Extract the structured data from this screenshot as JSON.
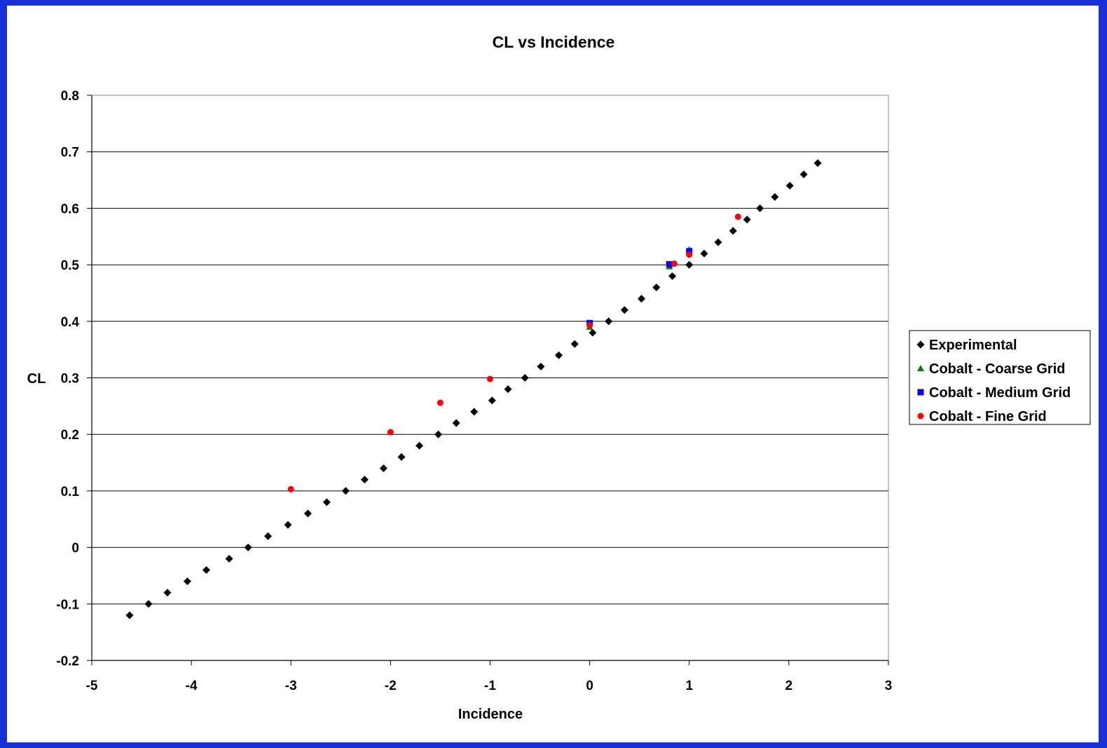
{
  "chart_data": {
    "type": "scatter",
    "title": "CL vs Incidence",
    "xlabel": "Incidence",
    "ylabel": "CL",
    "xlim": [
      -5,
      3
    ],
    "ylim": [
      -0.2,
      0.8
    ],
    "x_ticks": [
      -5,
      -4,
      -3,
      -2,
      -1,
      0,
      1,
      2,
      3
    ],
    "y_ticks": [
      -0.2,
      -0.1,
      0,
      0.1,
      0.2,
      0.3,
      0.4,
      0.5,
      0.6,
      0.7,
      0.8
    ],
    "x_tick_labels": [
      "-5",
      "-4",
      "-3",
      "-2",
      "-1",
      "0",
      "1",
      "2",
      "3"
    ],
    "y_tick_labels": [
      "-0.2",
      "-0.1",
      "0",
      "0.1",
      "0.2",
      "0.3",
      "0.4",
      "0.5",
      "0.6",
      "0.7",
      "0.8"
    ],
    "grid": "horizontal",
    "legend_position": "right",
    "series": [
      {
        "name": "Experimental",
        "marker": "diamond",
        "color": "#000000",
        "x": [
          -4.62,
          -4.43,
          -4.24,
          -4.04,
          -3.85,
          -3.62,
          -3.43,
          -3.23,
          -3.03,
          -2.83,
          -2.64,
          -2.45,
          -2.26,
          -2.07,
          -1.89,
          -1.71,
          -1.52,
          -1.34,
          -1.16,
          -0.98,
          -0.82,
          -0.65,
          -0.49,
          -0.31,
          -0.15,
          0.03,
          0.19,
          0.35,
          0.52,
          0.67,
          0.83,
          1.0,
          1.15,
          1.29,
          1.44,
          1.58,
          1.71,
          1.86,
          2.01,
          2.15,
          2.29
        ],
        "y": [
          -0.12,
          -0.1,
          -0.08,
          -0.06,
          -0.04,
          -0.02,
          0.0,
          0.02,
          0.04,
          0.06,
          0.08,
          0.1,
          0.12,
          0.14,
          0.16,
          0.18,
          0.2,
          0.22,
          0.24,
          0.26,
          0.28,
          0.3,
          0.32,
          0.34,
          0.36,
          0.38,
          0.4,
          0.42,
          0.44,
          0.46,
          0.48,
          0.5,
          0.52,
          0.54,
          0.56,
          0.58,
          0.6,
          0.62,
          0.64,
          0.66,
          0.68
        ]
      },
      {
        "name": "Cobalt - Coarse Grid",
        "marker": "triangle",
        "color": "#008000",
        "x": [
          0.0,
          0.8,
          1.0
        ],
        "y": [
          0.39,
          0.497,
          0.527
        ]
      },
      {
        "name": "Cobalt - Medium Grid",
        "marker": "square",
        "color": "#0000ff",
        "x": [
          0.0,
          0.8,
          1.0
        ],
        "y": [
          0.397,
          0.501,
          0.524
        ]
      },
      {
        "name": "Cobalt - Fine Grid",
        "marker": "circle",
        "color": "#ff0000",
        "x": [
          -3.0,
          -2.0,
          -1.5,
          -1.0,
          0.0,
          0.85,
          1.0,
          1.49
        ],
        "y": [
          0.103,
          0.204,
          0.256,
          0.298,
          0.393,
          0.502,
          0.518,
          0.585
        ]
      }
    ]
  }
}
